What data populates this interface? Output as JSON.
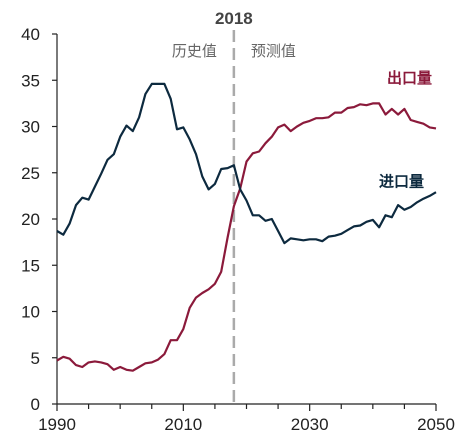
{
  "chart_data": {
    "type": "line",
    "title": "",
    "xlabel": "",
    "ylabel": "",
    "xlim": [
      1990,
      2050
    ],
    "ylim": [
      0,
      40
    ],
    "x_ticks": [
      1990,
      2010,
      2030,
      2050
    ],
    "y_ticks": [
      0,
      5,
      10,
      15,
      20,
      25,
      30,
      35,
      40
    ],
    "grid": false,
    "annotations": {
      "divider_year": 2018,
      "divider_label": "2018",
      "left_label": "历史值",
      "right_label": "预测值"
    },
    "series": [
      {
        "name": "出口量",
        "color": "#8b1a3b",
        "points": [
          [
            1990,
            4.7
          ],
          [
            1991,
            5.1
          ],
          [
            1992,
            4.9
          ],
          [
            1993,
            4.2
          ],
          [
            1994,
            4.0
          ],
          [
            1995,
            4.5
          ],
          [
            1996,
            4.6
          ],
          [
            1997,
            4.5
          ],
          [
            1998,
            4.3
          ],
          [
            1999,
            3.7
          ],
          [
            2000,
            4.0
          ],
          [
            2001,
            3.7
          ],
          [
            2002,
            3.6
          ],
          [
            2003,
            4.0
          ],
          [
            2004,
            4.4
          ],
          [
            2005,
            4.5
          ],
          [
            2006,
            4.8
          ],
          [
            2007,
            5.4
          ],
          [
            2008,
            6.9
          ],
          [
            2009,
            6.9
          ],
          [
            2010,
            8.1
          ],
          [
            2011,
            10.4
          ],
          [
            2012,
            11.5
          ],
          [
            2013,
            12.0
          ],
          [
            2014,
            12.4
          ],
          [
            2015,
            13.0
          ],
          [
            2016,
            14.3
          ],
          [
            2017,
            18.0
          ],
          [
            2018,
            21.4
          ],
          [
            2019,
            23.3
          ],
          [
            2020,
            26.2
          ],
          [
            2021,
            27.1
          ],
          [
            2022,
            27.3
          ],
          [
            2023,
            28.2
          ],
          [
            2024,
            28.9
          ],
          [
            2025,
            29.9
          ],
          [
            2026,
            30.2
          ],
          [
            2027,
            29.5
          ],
          [
            2028,
            30.0
          ],
          [
            2029,
            30.4
          ],
          [
            2030,
            30.6
          ],
          [
            2031,
            30.9
          ],
          [
            2032,
            30.9
          ],
          [
            2033,
            31.0
          ],
          [
            2034,
            31.5
          ],
          [
            2035,
            31.5
          ],
          [
            2036,
            32.0
          ],
          [
            2037,
            32.1
          ],
          [
            2038,
            32.4
          ],
          [
            2039,
            32.3
          ],
          [
            2040,
            32.5
          ],
          [
            2041,
            32.5
          ],
          [
            2042,
            31.3
          ],
          [
            2043,
            31.9
          ],
          [
            2044,
            31.3
          ],
          [
            2045,
            31.9
          ],
          [
            2046,
            30.7
          ],
          [
            2047,
            30.5
          ],
          [
            2048,
            30.3
          ],
          [
            2049,
            29.9
          ],
          [
            2050,
            29.8
          ]
        ]
      },
      {
        "name": "进口量",
        "color": "#0d2a3f",
        "points": [
          [
            1990,
            18.7
          ],
          [
            1991,
            18.3
          ],
          [
            1992,
            19.5
          ],
          [
            1993,
            21.5
          ],
          [
            1994,
            22.3
          ],
          [
            1995,
            22.1
          ],
          [
            1996,
            23.5
          ],
          [
            1997,
            24.9
          ],
          [
            1998,
            26.4
          ],
          [
            1999,
            27.0
          ],
          [
            2000,
            28.9
          ],
          [
            2001,
            30.1
          ],
          [
            2002,
            29.5
          ],
          [
            2003,
            31.0
          ],
          [
            2004,
            33.5
          ],
          [
            2005,
            34.6
          ],
          [
            2006,
            34.6
          ],
          [
            2007,
            34.6
          ],
          [
            2008,
            33.0
          ],
          [
            2009,
            29.7
          ],
          [
            2010,
            29.9
          ],
          [
            2011,
            28.6
          ],
          [
            2012,
            27.0
          ],
          [
            2013,
            24.6
          ],
          [
            2014,
            23.2
          ],
          [
            2015,
            23.8
          ],
          [
            2016,
            25.4
          ],
          [
            2017,
            25.5
          ],
          [
            2018,
            25.8
          ],
          [
            2019,
            23.2
          ],
          [
            2020,
            22.0
          ],
          [
            2021,
            20.4
          ],
          [
            2022,
            20.4
          ],
          [
            2023,
            19.8
          ],
          [
            2024,
            20.0
          ],
          [
            2025,
            18.7
          ],
          [
            2026,
            17.4
          ],
          [
            2027,
            17.9
          ],
          [
            2028,
            17.8
          ],
          [
            2029,
            17.7
          ],
          [
            2030,
            17.8
          ],
          [
            2031,
            17.8
          ],
          [
            2032,
            17.6
          ],
          [
            2033,
            18.1
          ],
          [
            2034,
            18.2
          ],
          [
            2035,
            18.4
          ],
          [
            2036,
            18.8
          ],
          [
            2037,
            19.2
          ],
          [
            2038,
            19.3
          ],
          [
            2039,
            19.7
          ],
          [
            2040,
            19.9
          ],
          [
            2041,
            19.1
          ],
          [
            2042,
            20.4
          ],
          [
            2043,
            20.2
          ],
          [
            2044,
            21.5
          ],
          [
            2045,
            21.0
          ],
          [
            2046,
            21.3
          ],
          [
            2047,
            21.8
          ],
          [
            2048,
            22.2
          ],
          [
            2049,
            22.5
          ],
          [
            2050,
            22.9
          ]
        ]
      }
    ]
  }
}
